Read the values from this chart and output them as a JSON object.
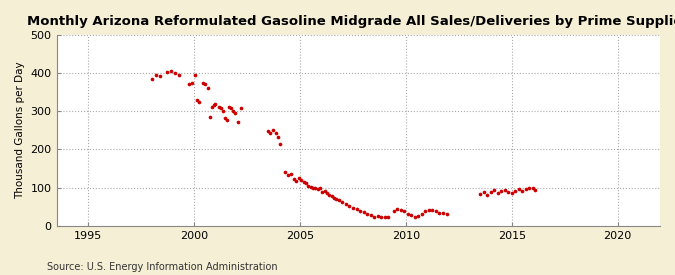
{
  "title": "Monthly Arizona Reformulated Gasoline Midgrade All Sales/Deliveries by Prime Supplier",
  "ylabel": "Thousand Gallons per Day",
  "source": "Source: U.S. Energy Information Administration",
  "background_color": "#f5efd5",
  "plot_bg_color": "#ffffff",
  "dot_color": "#cc0000",
  "dot_size": 7,
  "xlim": [
    1993.5,
    2022
  ],
  "ylim": [
    0,
    500
  ],
  "yticks": [
    0,
    100,
    200,
    300,
    400,
    500
  ],
  "xticks": [
    1995,
    2000,
    2005,
    2010,
    2015,
    2020
  ],
  "data": [
    [
      1998.0,
      385
    ],
    [
      1998.2,
      395
    ],
    [
      1998.4,
      392
    ],
    [
      1998.7,
      402
    ],
    [
      1998.9,
      405
    ],
    [
      1999.1,
      400
    ],
    [
      1999.3,
      395
    ],
    [
      1999.75,
      370
    ],
    [
      1999.9,
      375
    ],
    [
      2000.05,
      395
    ],
    [
      2000.15,
      330
    ],
    [
      2000.25,
      325
    ],
    [
      2000.4,
      375
    ],
    [
      2000.5,
      370
    ],
    [
      2000.65,
      360
    ],
    [
      2000.75,
      285
    ],
    [
      2000.85,
      310
    ],
    [
      2000.95,
      315
    ],
    [
      2001.0,
      320
    ],
    [
      2001.15,
      310
    ],
    [
      2001.25,
      308
    ],
    [
      2001.35,
      300
    ],
    [
      2001.45,
      282
    ],
    [
      2001.55,
      278
    ],
    [
      2001.65,
      310
    ],
    [
      2001.75,
      308
    ],
    [
      2001.85,
      300
    ],
    [
      2001.95,
      295
    ],
    [
      2002.05,
      272
    ],
    [
      2002.2,
      308
    ],
    [
      2003.5,
      248
    ],
    [
      2003.6,
      242
    ],
    [
      2003.7,
      252
    ],
    [
      2003.85,
      242
    ],
    [
      2003.95,
      232
    ],
    [
      2004.05,
      215
    ],
    [
      2004.3,
      140
    ],
    [
      2004.45,
      132
    ],
    [
      2004.58,
      135
    ],
    [
      2004.7,
      122
    ],
    [
      2004.83,
      118
    ],
    [
      2004.95,
      126
    ],
    [
      2005.05,
      120
    ],
    [
      2005.17,
      115
    ],
    [
      2005.28,
      112
    ],
    [
      2005.38,
      105
    ],
    [
      2005.5,
      102
    ],
    [
      2005.6,
      100
    ],
    [
      2005.72,
      98
    ],
    [
      2005.83,
      97
    ],
    [
      2005.95,
      100
    ],
    [
      2006.05,
      88
    ],
    [
      2006.17,
      92
    ],
    [
      2006.28,
      86
    ],
    [
      2006.38,
      82
    ],
    [
      2006.5,
      78
    ],
    [
      2006.62,
      72
    ],
    [
      2006.72,
      70
    ],
    [
      2006.83,
      68
    ],
    [
      2007.0,
      63
    ],
    [
      2007.17,
      58
    ],
    [
      2007.33,
      52
    ],
    [
      2007.5,
      48
    ],
    [
      2007.67,
      44
    ],
    [
      2007.83,
      40
    ],
    [
      2008.0,
      37
    ],
    [
      2008.17,
      32
    ],
    [
      2008.33,
      28
    ],
    [
      2008.5,
      22
    ],
    [
      2008.67,
      26
    ],
    [
      2008.83,
      24
    ],
    [
      2009.0,
      22
    ],
    [
      2009.17,
      24
    ],
    [
      2009.42,
      40
    ],
    [
      2009.58,
      45
    ],
    [
      2009.75,
      42
    ],
    [
      2009.92,
      38
    ],
    [
      2010.08,
      32
    ],
    [
      2010.25,
      28
    ],
    [
      2010.42,
      22
    ],
    [
      2010.58,
      26
    ],
    [
      2010.75,
      30
    ],
    [
      2010.92,
      38
    ],
    [
      2011.08,
      42
    ],
    [
      2011.25,
      42
    ],
    [
      2011.42,
      38
    ],
    [
      2011.58,
      35
    ],
    [
      2011.75,
      33
    ],
    [
      2011.92,
      32
    ],
    [
      2013.5,
      83
    ],
    [
      2013.67,
      88
    ],
    [
      2013.83,
      80
    ],
    [
      2014.0,
      88
    ],
    [
      2014.17,
      93
    ],
    [
      2014.33,
      85
    ],
    [
      2014.5,
      91
    ],
    [
      2014.67,
      93
    ],
    [
      2014.83,
      88
    ],
    [
      2015.0,
      87
    ],
    [
      2015.17,
      92
    ],
    [
      2015.33,
      96
    ],
    [
      2015.5,
      92
    ],
    [
      2015.67,
      96
    ],
    [
      2015.83,
      98
    ],
    [
      2016.0,
      100
    ],
    [
      2016.1,
      95
    ]
  ]
}
